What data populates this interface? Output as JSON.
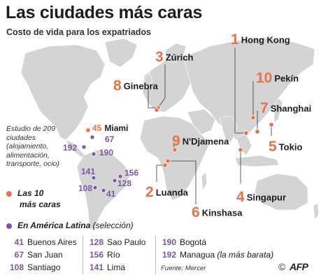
{
  "header": {
    "title": "Las ciudades más caras",
    "subtitle": "Costo de vida para los expatriados"
  },
  "colors": {
    "top10": "#e8734a",
    "latin_america": "#7b57a3",
    "land": "#d4d4d4",
    "water": "#ffffff",
    "leader_line": "#333333"
  },
  "top10": [
    {
      "rank": "1",
      "city": "Hong Kong"
    },
    {
      "rank": "2",
      "city": "Luanda"
    },
    {
      "rank": "3",
      "city": "Zúrich"
    },
    {
      "rank": "4",
      "city": "Singapur"
    },
    {
      "rank": "5",
      "city": "Tokio"
    },
    {
      "rank": "6",
      "city": "Kinshasa"
    },
    {
      "rank": "7",
      "city": "Shanghai"
    },
    {
      "rank": "8",
      "city": "Ginebra"
    },
    {
      "rank": "9",
      "city": "N'Djamena"
    },
    {
      "rank": "10",
      "city": "Pekín"
    }
  ],
  "miami": {
    "rank": "45",
    "city": "Miami"
  },
  "map_la_numbers": [
    "67",
    "192",
    "190",
    "141",
    "156",
    "128",
    "108",
    "41"
  ],
  "study_note": "Estudio de 209 ciudades (alojamiento, alimentación, transporte, ocio)",
  "legend": {
    "top10_line1": "Las 10",
    "top10_line2": "más caras",
    "la_bold": "En América Latina",
    "la_normal": "(selección)"
  },
  "latin_america_table": [
    [
      {
        "rank": "41",
        "city": "Buenos Aires"
      },
      {
        "rank": "67",
        "city": "San Juan"
      },
      {
        "rank": "108",
        "city": "Santiago"
      }
    ],
    [
      {
        "rank": "128",
        "city": "Sao Paulo"
      },
      {
        "rank": "156",
        "city": "Río"
      },
      {
        "rank": "141",
        "city": "Lima"
      }
    ],
    [
      {
        "rank": "190",
        "city": "Bogotá"
      },
      {
        "rank": "192",
        "city": "Managua",
        "note": "(la más barata)"
      }
    ]
  ],
  "source": "Fuente: Mercer",
  "copyright": "©",
  "agency": "AFP"
}
